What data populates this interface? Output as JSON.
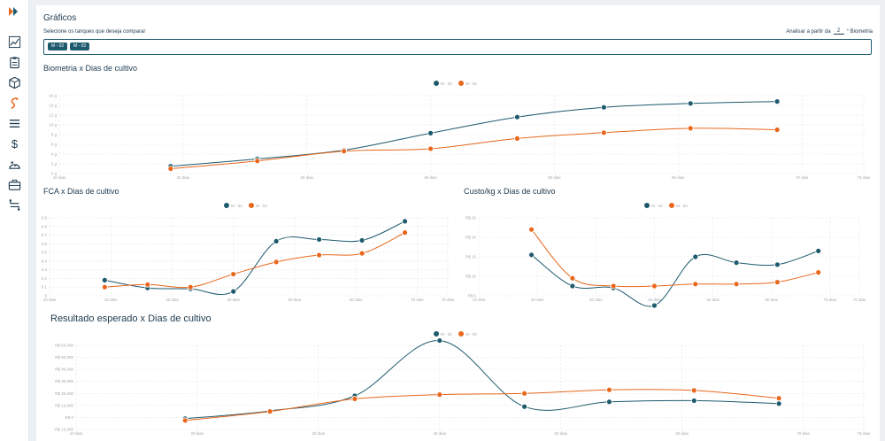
{
  "sidebar": {
    "items": [
      {
        "name": "dashboard-chart-icon"
      },
      {
        "name": "clipboard-icon"
      },
      {
        "name": "box-icon"
      },
      {
        "name": "shrimp-icon"
      },
      {
        "name": "list-icon"
      },
      {
        "name": "dollar-icon",
        "glyph": "$"
      },
      {
        "name": "scale-icon"
      },
      {
        "name": "briefcase-icon"
      },
      {
        "name": "transfer-icon"
      }
    ]
  },
  "page": {
    "title": "Gráficos",
    "select_label": "Selecione os tanques que deseja comparar",
    "analyze_prefix": "Analisar a partir da",
    "analyze_value": "2",
    "analyze_suffix": "° Biometria",
    "tanks": [
      "M - 02",
      "M - 03"
    ]
  },
  "colors": {
    "series_a": "#1d5a6d",
    "series_b": "#e8671c",
    "grid": "#e2e5e8",
    "axis_text": "#a0a8b0"
  },
  "chart_data": [
    {
      "id": "biometria",
      "type": "line",
      "title": "Biometria x Dias de cultivo",
      "x_ticks": [
        10,
        20,
        30,
        40,
        50,
        60,
        70,
        75
      ],
      "x_tick_labels": [
        "10 dias",
        "20 dias",
        "30 dias",
        "40 dias",
        "50 dias",
        "60 dias",
        "70 dias",
        "75 dias"
      ],
      "xlim": [
        10,
        75
      ],
      "y_ticks": [
        0,
        2,
        4,
        6,
        8,
        10,
        12,
        14,
        16
      ],
      "y_tick_labels": [
        "0 g",
        "2 g",
        "4 g",
        "6 g",
        "8 g",
        "10 g",
        "12 g",
        "14 g",
        "16 g"
      ],
      "ylim": [
        0,
        16
      ],
      "series": [
        {
          "name": "M - 02",
          "x": [
            19,
            26,
            33,
            40,
            47,
            54,
            61,
            68
          ],
          "y": [
            1.5,
            3.0,
            4.8,
            8.3,
            11.6,
            13.6,
            14.4,
            14.8
          ]
        },
        {
          "name": "M - 03",
          "x": [
            19,
            26,
            33,
            40,
            47,
            54,
            61,
            68
          ],
          "y": [
            1.0,
            2.6,
            4.6,
            5.1,
            7.2,
            8.4,
            9.3,
            9.0
          ]
        }
      ]
    },
    {
      "id": "fca",
      "type": "line",
      "title": "FCA x Dias de cultivo",
      "x_ticks": [
        10,
        20,
        30,
        40,
        50,
        60,
        70,
        75
      ],
      "x_tick_labels": [
        "10 dias",
        "20 dias",
        "30 dias",
        "40 dias",
        "50 dias",
        "60 dias",
        "70 dias",
        "75 dias"
      ],
      "xlim": [
        10,
        75
      ],
      "y_ticks": [
        0,
        0.1,
        0.2,
        0.3,
        0.4,
        0.5,
        0.6,
        0.7,
        0.8,
        0.9
      ],
      "y_tick_labels": [
        "0",
        "0.1",
        "0.2",
        "0.3",
        "0.4",
        "0.5",
        "0.6",
        "0.7",
        "0.8",
        "0.9"
      ],
      "ylim": [
        0,
        0.9
      ],
      "series": [
        {
          "name": "M - 02",
          "x": [
            19,
            26,
            33,
            40,
            47,
            54,
            61,
            68
          ],
          "y": [
            0.18,
            0.09,
            0.08,
            0.05,
            0.63,
            0.65,
            0.64,
            0.86
          ]
        },
        {
          "name": "M - 03",
          "x": [
            19,
            26,
            33,
            40,
            47,
            54,
            61,
            68
          ],
          "y": [
            0.1,
            0.13,
            0.1,
            0.25,
            0.39,
            0.47,
            0.49,
            0.73
          ]
        }
      ]
    },
    {
      "id": "custo",
      "type": "line",
      "title": "Custo/kg x Dias de cultivo",
      "x_ticks": [
        10,
        20,
        30,
        40,
        50,
        60,
        70,
        75
      ],
      "x_tick_labels": [
        "10 dias",
        "20 dias",
        "30 dias",
        "40 dias",
        "50 dias",
        "60 dias",
        "70 dias",
        "75 dias"
      ],
      "xlim": [
        10,
        75
      ],
      "y_ticks": [
        5,
        10,
        15,
        20,
        25
      ],
      "y_tick_labels": [
        "R$ 5",
        "R$ 10",
        "R$ 15",
        "R$ 20",
        "R$ 25"
      ],
      "ylim": [
        5,
        25
      ],
      "series": [
        {
          "name": "M - 02",
          "x": [
            19,
            26,
            33,
            40,
            47,
            54,
            61,
            68
          ],
          "y": [
            15.5,
            7.5,
            7.0,
            2.5,
            15.0,
            13.5,
            13.0,
            16.5
          ]
        },
        {
          "name": "M - 03",
          "x": [
            19,
            26,
            33,
            40,
            47,
            54,
            61,
            68
          ],
          "y": [
            22.0,
            9.5,
            7.5,
            7.5,
            8.0,
            8.0,
            8.5,
            11.0
          ]
        }
      ]
    },
    {
      "id": "resultado",
      "type": "line",
      "title": "Resultado esperado x Dias de cultivo",
      "x_ticks": [
        10,
        20,
        30,
        40,
        50,
        60,
        70,
        75
      ],
      "x_tick_labels": [
        "10 dias",
        "20 dias",
        "30 dias",
        "40 dias",
        "50 dias",
        "60 dias",
        "70 dias",
        "75 dias"
      ],
      "xlim": [
        10,
        75
      ],
      "y_ticks": [
        -10000,
        0,
        10000,
        20000,
        30000,
        40000,
        50000,
        60000
      ],
      "y_tick_labels": [
        "-R$ 10,000",
        "R$ 0",
        "R$ 10,000",
        "R$ 20,000",
        "R$ 30,000",
        "R$ 40,000",
        "R$ 50,000",
        "R$ 60,000"
      ],
      "ylim": [
        -10000,
        60000
      ],
      "series": [
        {
          "name": "M - 02",
          "x": [
            19,
            26,
            33,
            40,
            47,
            54,
            61,
            68
          ],
          "y": [
            -1000,
            5500,
            18000,
            64000,
            9000,
            13000,
            14000,
            11500
          ]
        },
        {
          "name": "M - 03",
          "x": [
            19,
            26,
            33,
            40,
            47,
            54,
            61,
            68
          ],
          "y": [
            -2500,
            5000,
            15500,
            19000,
            20000,
            23000,
            22500,
            16000
          ]
        }
      ]
    }
  ]
}
